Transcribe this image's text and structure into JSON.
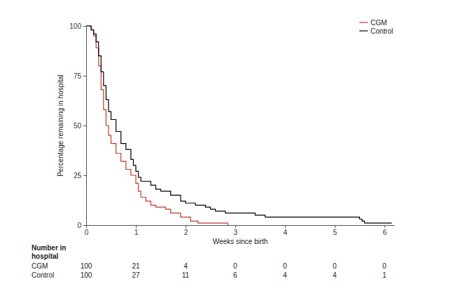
{
  "chart_data": {
    "type": "line",
    "line_style": "step",
    "x_label": "Weeks since birth",
    "y_label": "Percentage remaining in hospital",
    "xlim": [
      0,
      6.2
    ],
    "xticks": [
      0,
      1,
      2,
      3,
      4,
      5,
      6
    ],
    "ylim": [
      0,
      100
    ],
    "yticks": [
      0,
      25,
      50,
      75,
      100
    ],
    "legend": "upper right",
    "series": [
      {
        "name": "CGM",
        "color": "#c0392b",
        "x": [
          0,
          0.1,
          0.15,
          0.2,
          0.25,
          0.3,
          0.35,
          0.4,
          0.45,
          0.5,
          0.6,
          0.7,
          0.8,
          0.9,
          1.0,
          1.05,
          1.1,
          1.2,
          1.3,
          1.4,
          1.6,
          1.7,
          1.9,
          2.1,
          2.25,
          2.85
        ],
        "values": [
          100,
          98,
          95,
          89,
          80,
          68,
          58,
          50,
          45,
          41,
          36,
          32,
          28,
          25,
          21,
          17,
          14,
          12,
          10,
          9,
          8,
          6,
          4,
          2,
          1,
          0
        ]
      },
      {
        "name": "Control",
        "color": "#000000",
        "x": [
          0,
          0.1,
          0.15,
          0.2,
          0.25,
          0.3,
          0.35,
          0.4,
          0.45,
          0.5,
          0.6,
          0.7,
          0.8,
          0.9,
          0.95,
          1.0,
          1.05,
          1.1,
          1.3,
          1.4,
          1.5,
          1.7,
          1.9,
          2.0,
          2.2,
          2.4,
          2.5,
          2.6,
          2.8,
          3.4,
          3.6,
          5.5,
          5.55,
          5.6,
          6.15
        ],
        "values": [
          100,
          98,
          96,
          92,
          85,
          77,
          70,
          63,
          57,
          53,
          47,
          41,
          38,
          33,
          30,
          27,
          24,
          22,
          20,
          18,
          17,
          15,
          12,
          11,
          10,
          9,
          8,
          7,
          6,
          5,
          4,
          3,
          2,
          1,
          1
        ]
      }
    ],
    "number_at_risk": {
      "label": [
        "Number in",
        "hospital"
      ],
      "x": [
        0,
        1,
        2,
        3,
        4,
        5,
        6
      ],
      "series": [
        {
          "name": "CGM",
          "values": [
            100,
            21,
            4,
            0,
            0,
            0,
            0
          ]
        },
        {
          "name": "Control",
          "values": [
            100,
            27,
            11,
            6,
            4,
            4,
            1
          ]
        }
      ]
    }
  }
}
